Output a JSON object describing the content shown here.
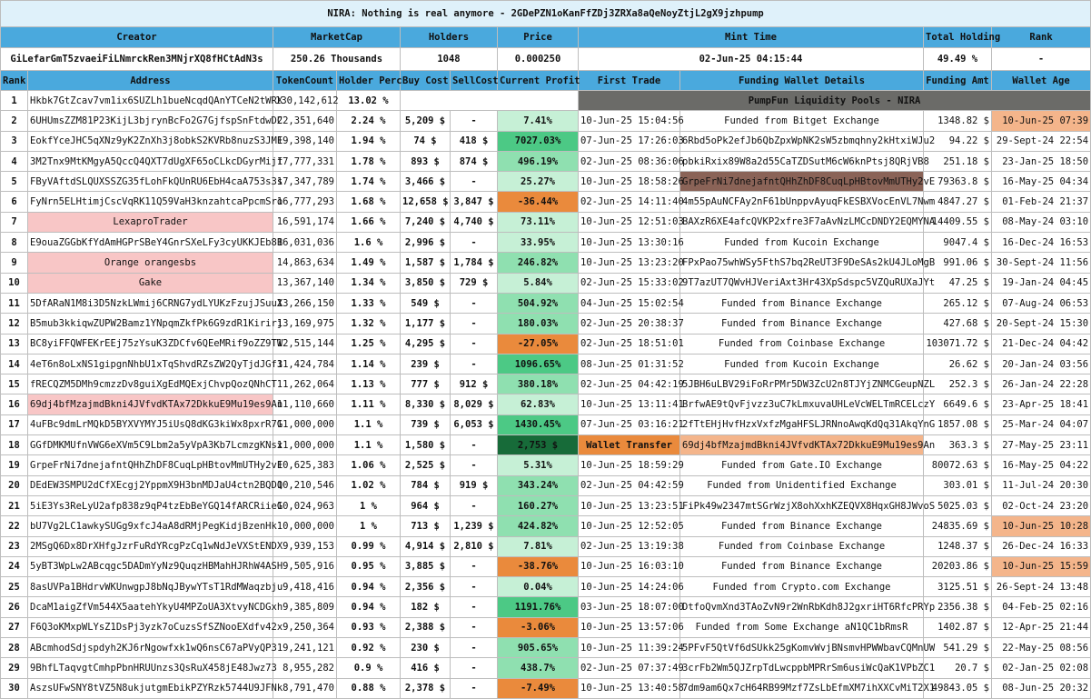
{
  "title": "NIRA: Nothing is real anymore - 2GDePZN1oKanFfZDj3ZRXa8aQeNoyZtjL2gX9jzhpump",
  "summary_headers": {
    "creator": "Creator",
    "marketcap": "MarketCap",
    "holders": "Holders",
    "price": "Price",
    "mint_time": "Mint Time",
    "total_holding": "Total Holding",
    "rank": "Rank"
  },
  "summary": {
    "creator": "GiLefarGmT5zvaeiFiLNmrckRen3MNjrXQ8fHCtAdN3s",
    "marketcap": "250.26 Thousands",
    "holders": "1048",
    "price": "0.000250",
    "mint_time": "02-Jun-25 04:15:44",
    "total_holding": "49.49 %",
    "rank": "-"
  },
  "columns": {
    "rank": "Rank",
    "address": "Address",
    "token_count": "TokenCount",
    "holder_perc": "Holder Perc",
    "buy_cost": "Buy Cost",
    "sell_cost": "SellCost",
    "current_profit": "Current Profit",
    "first_trade": "First Trade",
    "funding": "Funding Wallet Details",
    "funding_amt": "Funding Amt",
    "wallet_age": "Wallet Age"
  },
  "pool_label": "PumpFun Liquidity Pools - NIRA",
  "colors": {
    "header_blue": "#4aa9dd",
    "title_bg": "#dff1fa",
    "pink_tag": "#f8c6c6",
    "profit_light": "#c6f0d6",
    "profit_mid": "#8fe0b0",
    "profit_high": "#4cc985",
    "loss_orange": "#ea8a3c",
    "pool_grey": "#6b6b68",
    "age_highlight": "#f4b58b"
  },
  "rows": [
    {
      "rank": "1",
      "address": "Hkbk7GtZcav7vm1ix6SUZLh1bueNcqdQAnYTCeN2tWRX",
      "tokens": "130,142,612",
      "perc": "13.02 %",
      "buy": "",
      "sell": "",
      "profit": "",
      "trade": "",
      "fund": "",
      "amt": "",
      "age": ""
    },
    {
      "rank": "2",
      "address": "6UHUmsZZM81P23KijL3bjrynBcFo2G7GjfspSnFtdwDC",
      "tokens": "22,351,640",
      "perc": "2.24 %",
      "buy": "5,209 $",
      "sell": "-",
      "profit": "7.41%",
      "trade": "10-Jun-25 15:04:56",
      "fund": "Funded from Bitget Exchange",
      "amt": "1348.82 $",
      "age": "10-Jun-25 07:39"
    },
    {
      "rank": "3",
      "address": "EokfYceJHC5qXNz9yK2ZnXh3j8obkS2KVRb8nuzS3JME",
      "tokens": "19,398,140",
      "perc": "1.94 %",
      "buy": "74 $",
      "sell": "418 $",
      "profit": "7027.03%",
      "trade": "07-Jun-25 17:26:03",
      "fund": "6Rbd5oPk2efJb6QbZpxWpNK2sW5zbmqhny2kHtxiWJu2",
      "amt": "94.22 $",
      "age": "29-Sept-24 22:54"
    },
    {
      "rank": "4",
      "address": "3M2Tnx9MtKMgyA5QccQ4QXT7dUgXF65oCLkcDGyrMijf",
      "tokens": "17,777,331",
      "perc": "1.78 %",
      "buy": "893 $",
      "sell": "874 $",
      "profit": "496.19%",
      "trade": "02-Jun-25 08:36:06",
      "fund": "pbkiRxix89W8a2d55CaTZDSutM6cW6knPtsj8QRjVB8",
      "amt": "251.18 $",
      "age": "23-Jan-25 18:50"
    },
    {
      "rank": "5",
      "address": "FByVAftdSLQUXSSZG35fLohFkQUnRU6EbH4caA753s3s",
      "tokens": "17,347,789",
      "perc": "1.74 %",
      "buy": "3,466 $",
      "sell": "-",
      "profit": "25.27%",
      "trade": "10-Jun-25 18:58:26",
      "fund": "GrpeFrNi7dnejafntQHhZhDF8CuqLpHBtovMmUTHy2vE",
      "amt": "79363.8 $",
      "age": "16-May-25 04:34"
    },
    {
      "rank": "6",
      "address": "FyNrn5ELHtimjCscVqRK11Q59VaH3knzahtcaPpcmSro",
      "tokens": "16,777,293",
      "perc": "1.68 %",
      "buy": "12,658 $",
      "sell": "3,847 $",
      "profit": "-36.44%",
      "trade": "02-Jun-25 14:11:40",
      "fund": "4m55pAuNCFAy2nF61bUnppvAyuqFkESBXVocEnVL7Nwm",
      "amt": "4847.27 $",
      "age": "01-Feb-24 21:37"
    },
    {
      "rank": "7",
      "address": "LexaproTrader",
      "tokens": "16,591,174",
      "perc": "1.66 %",
      "buy": "7,240 $",
      "sell": "4,740 $",
      "profit": "73.11%",
      "trade": "10-Jun-25 12:51:03",
      "fund": "BAXzR6XE4afcQVKP2xfre3F7aAvNzLMCcDNDY2EQMYNA",
      "amt": "14409.55 $",
      "age": "08-May-24 03:10"
    },
    {
      "rank": "8",
      "address": "E9ouaZGGbKfYdAmHGPrSBeY4GnrSXeLFy3cyUKKJEb8B",
      "tokens": "16,031,036",
      "perc": "1.6 %",
      "buy": "2,996 $",
      "sell": "-",
      "profit": "33.95%",
      "trade": "10-Jun-25 13:30:16",
      "fund": "Funded from Kucoin Exchange",
      "amt": "9047.4 $",
      "age": "16-Dec-24 16:53"
    },
    {
      "rank": "9",
      "address": "Orange orangesbs",
      "tokens": "14,863,634",
      "perc": "1.49 %",
      "buy": "1,587 $",
      "sell": "1,784 $",
      "profit": "246.82%",
      "trade": "10-Jun-25 13:23:20",
      "fund": "FPxPao75whWSy5FthS7bq2ReUT3F9DeSAs2kU4JLoMgB",
      "amt": "991.06 $",
      "age": "30-Sept-24 11:56"
    },
    {
      "rank": "10",
      "address": "Gake",
      "tokens": "13,367,140",
      "perc": "1.34 %",
      "buy": "3,850 $",
      "sell": "729 $",
      "profit": "5.84%",
      "trade": "02-Jun-25 15:33:02",
      "fund": "9T7azUT7QWvHJVeriAxt3Hr43XpSdspc5VZQuRUXaJYt",
      "amt": "47.25 $",
      "age": "19-Jan-24 04:45"
    },
    {
      "rank": "11",
      "address": "5DfARaN1M8i3D5NzkLWmij6CRNG7ydLYUKzFzujJSuuX",
      "tokens": "13,266,150",
      "perc": "1.33 %",
      "buy": "549 $",
      "sell": "-",
      "profit": "504.92%",
      "trade": "04-Jun-25 15:02:54",
      "fund": "Funded from Binance Exchange",
      "amt": "265.12 $",
      "age": "07-Aug-24 06:53"
    },
    {
      "rank": "12",
      "address": "B5mub3kkiqwZUPW2Bamz1YNpqmZkfPk6G9zdR1Kirirj",
      "tokens": "13,169,975",
      "perc": "1.32 %",
      "buy": "1,177 $",
      "sell": "-",
      "profit": "180.03%",
      "trade": "02-Jun-25 20:38:37",
      "fund": "Funded from Binance Exchange",
      "amt": "427.68 $",
      "age": "20-Sept-24 15:30"
    },
    {
      "rank": "13",
      "address": "BC8yiFFQWFEKrEEj75zYsuK3ZDCfv6QEeMRif9oZZ9TW",
      "tokens": "12,515,144",
      "perc": "1.25 %",
      "buy": "4,295 $",
      "sell": "-",
      "profit": "-27.05%",
      "trade": "02-Jun-25 18:51:01",
      "fund": "Funded from Coinbase Exchange",
      "amt": "103071.72 $",
      "age": "21-Dec-24 04:42"
    },
    {
      "rank": "14",
      "address": "4eT6n8oLxNS1gipgnNhbU1xTqShvdRZsZW2QyTjdJGf3",
      "tokens": "11,424,784",
      "perc": "1.14 %",
      "buy": "239 $",
      "sell": "-",
      "profit": "1096.65%",
      "trade": "08-Jun-25 01:31:52",
      "fund": "Funded from Kucoin Exchange",
      "amt": "26.62 $",
      "age": "20-Jan-24 03:56"
    },
    {
      "rank": "15",
      "address": "fRECQZM5DMh9cmzzDv8guiXgEdMQExjChvpQozQNhCT",
      "tokens": "11,262,064",
      "perc": "1.13 %",
      "buy": "777 $",
      "sell": "912 $",
      "profit": "380.18%",
      "trade": "02-Jun-25 04:42:19",
      "fund": "5JBH6uLBV29iFoRrPMr5DW3ZcU2n8TJYjZNMCGeupNZL",
      "amt": "252.3 $",
      "age": "26-Jan-24 22:28"
    },
    {
      "rank": "16",
      "address": "69dj4bfMzajmdBkni4JVfvdKTAx72DkkuE9Mu19es9An",
      "tokens": "11,110,660",
      "perc": "1.11 %",
      "buy": "8,330 $",
      "sell": "8,029 $",
      "profit": "62.83%",
      "trade": "10-Jun-25 13:11:41",
      "fund": "BrfwAE9tQvFjvzz3uC7kLmxuvaUHLeVcWELTmRCELczY",
      "amt": "6649.6 $",
      "age": "23-Apr-25 18:41"
    },
    {
      "rank": "17",
      "address": "4uFBc9dmLrMQkD5BYXVYMYJ5iUsQ8dKG3kiWx8pxrR7G",
      "tokens": "11,000,000",
      "perc": "1.1 %",
      "buy": "739 $",
      "sell": "6,053 $",
      "profit": "1430.45%",
      "trade": "07-Jun-25 03:16:21",
      "fund": "2fTtEHjHvfHzxVxfzMgaHFSLJRNnoAwqKdQq31AkqYnG",
      "amt": "1857.08 $",
      "age": "25-Mar-24 04:07"
    },
    {
      "rank": "18",
      "address": "GGfDMKMUfnVWG6eXVm5C9Lbm2a5yVpA3Kb7LcmzgKNsx",
      "tokens": "11,000,000",
      "perc": "1.1 %",
      "buy": "1,580 $",
      "sell": "-",
      "profit": "2,753 $",
      "trade": "Wallet Transfer",
      "fund": "69dj4bfMzajmdBkni4JVfvdKTAx72DkkuE9Mu19es9An",
      "amt": "363.3 $",
      "age": "27-May-25 23:11"
    },
    {
      "rank": "19",
      "address": "GrpeFrNi7dnejafntQHhZhDF8CuqLpHBtovMmUTHy2vE",
      "tokens": "10,625,383",
      "perc": "1.06 %",
      "buy": "2,525 $",
      "sell": "-",
      "profit": "5.31%",
      "trade": "10-Jun-25 18:59:29",
      "fund": "Funded from Gate.IO Exchange",
      "amt": "80072.63 $",
      "age": "16-May-25 04:22"
    },
    {
      "rank": "20",
      "address": "DEdEW3SMPU2dCfXEcgj2YppmX9H3bnMDJaU4ctn2BQDQ",
      "tokens": "10,210,546",
      "perc": "1.02 %",
      "buy": "784 $",
      "sell": "919 $",
      "profit": "343.24%",
      "trade": "02-Jun-25 04:42:59",
      "fund": "Funded from Unidentified Exchange",
      "amt": "303.01 $",
      "age": "11-Jul-24 20:30"
    },
    {
      "rank": "21",
      "address": "5iE3Ys3ReLyU2afp838z9qP4tzEbBeYGQ14fARCRiieG",
      "tokens": "10,024,963",
      "perc": "1 %",
      "buy": "964 $",
      "sell": "-",
      "profit": "160.27%",
      "trade": "10-Jun-25 13:23:51",
      "fund": "FiPk49w2347mtSGrWzjX8ohXxhKZEQVX8HqxGH8JWvoS",
      "amt": "5025.03 $",
      "age": "02-Oct-24 23:20"
    },
    {
      "rank": "22",
      "address": "bU7Vg2LC1awkySUGg9xfcJ4aA8dRMjPegKidjBzenHk",
      "tokens": "10,000,000",
      "perc": "1 %",
      "buy": "713 $",
      "sell": "1,239 $",
      "profit": "424.82%",
      "trade": "10-Jun-25 12:52:05",
      "fund": "Funded from Binance Exchange",
      "amt": "24835.69 $",
      "age": "10-Jun-25 10:28"
    },
    {
      "rank": "23",
      "address": "2MSgQ6Dx8DrXHfgJzrFuRdYRcgPzCq1wNdJeVXStENDX",
      "tokens": "9,939,153",
      "perc": "0.99 %",
      "buy": "4,914 $",
      "sell": "2,810 $",
      "profit": "7.81%",
      "trade": "02-Jun-25 13:19:38",
      "fund": "Funded from Coinbase Exchange",
      "amt": "1248.37 $",
      "age": "26-Dec-24 16:33"
    },
    {
      "rank": "24",
      "address": "5yBT3WpLw2ABcqgc5DADmYyNz9QuqzHBMahHJRhW4ASH",
      "tokens": "9,505,916",
      "perc": "0.95 %",
      "buy": "3,885 $",
      "sell": "-",
      "profit": "-38.76%",
      "trade": "10-Jun-25 16:03:10",
      "fund": "Funded from Binance Exchange",
      "amt": "20203.86 $",
      "age": "10-Jun-25 15:59"
    },
    {
      "rank": "25",
      "address": "8asUVPa1BHdrvWKUnwgpJ8bNqJBywYTsT1RdMWaqzbju",
      "tokens": "9,418,416",
      "perc": "0.94 %",
      "buy": "2,356 $",
      "sell": "-",
      "profit": "0.04%",
      "trade": "10-Jun-25 14:24:06",
      "fund": "Funded from Crypto.com Exchange",
      "amt": "3125.51 $",
      "age": "26-Sept-24 13:48"
    },
    {
      "rank": "26",
      "address": "DcaM1aigZfVm544X5aatehYkyU4MPZoUA3XtvyNCDGxh",
      "tokens": "9,385,809",
      "perc": "0.94 %",
      "buy": "182 $",
      "sell": "-",
      "profit": "1191.76%",
      "trade": "03-Jun-25 18:07:00",
      "fund": "DtfoQvmXnd3TAoZvN9r2WnRbKdh8J2gxriHT6RfcPRYp",
      "amt": "2356.38 $",
      "age": "04-Feb-25 02:16"
    },
    {
      "rank": "27",
      "address": "F6Q3oKMxpWLYsZ1DsPj3yzk7oCuzsSfSZNooEXdfv42x",
      "tokens": "9,250,364",
      "perc": "0.93 %",
      "buy": "2,388 $",
      "sell": "-",
      "profit": "-3.06%",
      "trade": "10-Jun-25 13:57:06",
      "fund": "Funded from Some Exchange aN1QC1bRmsR",
      "amt": "1402.87 $",
      "age": "12-Apr-25 21:44"
    },
    {
      "rank": "28",
      "address": "ABcmhodSdjspdyh2KJ6rNgowfxk1wQ6nsC67aPVyQP31",
      "tokens": "9,241,121",
      "perc": "0.92 %",
      "buy": "230 $",
      "sell": "-",
      "profit": "905.65%",
      "trade": "10-Jun-25 11:39:24",
      "fund": "5PFvF5QtVf6dSUkk25gKomvWvjBNsmvHPWWbavCQMnUW",
      "amt": "541.29 $",
      "age": "22-May-25 08:56"
    },
    {
      "rank": "29",
      "address": "9BhfLTaqvgtCmhpPbnHRUUnzs3QsRuX458jE48Jwz73",
      "tokens": "8,955,282",
      "perc": "0.9 %",
      "buy": "416 $",
      "sell": "-",
      "profit": "438.7%",
      "trade": "02-Jun-25 07:37:49",
      "fund": "3crFb2Wm5QJZrpTdLwcppbMPRrSm6usiWcQaK1VPbZC1",
      "amt": "20.7 $",
      "age": "02-Jan-25 02:08"
    },
    {
      "rank": "30",
      "address": "AszsUFwSNY8tVZ5N8ukjutgmEbikPZYRzk5744U9JFNk",
      "tokens": "8,791,470",
      "perc": "0.88 %",
      "buy": "2,378 $",
      "sell": "-",
      "profit": "-7.49%",
      "trade": "10-Jun-25 13:40:58",
      "fund": "7dm9am6Qx7cH64RB99Mzf7ZsLbEfmXM7ihXXCvMiT2X1",
      "amt": "49843.05 $",
      "age": "08-Jun-25 20:32"
    }
  ]
}
